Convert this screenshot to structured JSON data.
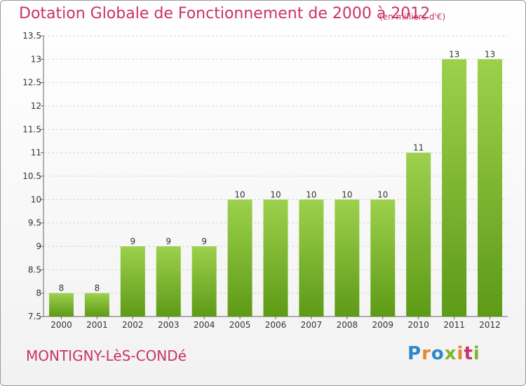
{
  "header": {
    "title": "Dotation Globale de Fonctionnement de 2000 à 2012",
    "subtitle": "(en milliers d'€)"
  },
  "footer": {
    "commune": "MONTIGNY-LèS-CONDé",
    "logo": "Proxiti",
    "logo_colors": [
      "#2f86c9",
      "#e8862c",
      "#2f86c9",
      "#7bb62e",
      "#e8862c",
      "#c9326a",
      "#7bb62e"
    ]
  },
  "colors": {
    "title": "#c9326a",
    "bar_top": "#9dd14d",
    "bar_bottom": "#5d9a16"
  },
  "chart_data": {
    "type": "bar",
    "categories": [
      "2000",
      "2001",
      "2002",
      "2003",
      "2004",
      "2005",
      "2006",
      "2007",
      "2008",
      "2009",
      "2010",
      "2011",
      "2012"
    ],
    "values": [
      8,
      8,
      9,
      9,
      9,
      10,
      10,
      10,
      10,
      10,
      11,
      13,
      13
    ],
    "data_labels": [
      "8",
      "8",
      "9",
      "9",
      "9",
      "10",
      "10",
      "10",
      "10",
      "10",
      "11",
      "13",
      "13"
    ],
    "ylim": [
      7.5,
      13.5
    ],
    "yticks": [
      7.5,
      8,
      8.5,
      9,
      9.5,
      10,
      10.5,
      11,
      11.5,
      12,
      12.5,
      13,
      13.5
    ],
    "ytick_labels": [
      "7.5",
      "8",
      "8.5",
      "9",
      "9.5",
      "10",
      "10.5",
      "11",
      "11.5",
      "12",
      "12.5",
      "13",
      "13.5"
    ],
    "grid": "horizontal dashed",
    "xlabel": "",
    "ylabel": ""
  }
}
